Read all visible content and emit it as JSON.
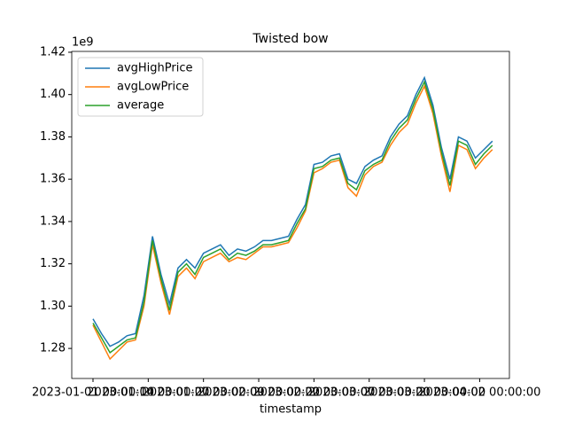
{
  "chart_data": {
    "type": "line",
    "title": "Twisted bow",
    "xlabel": "timestamp",
    "y_offset_label": "1e9",
    "x": [
      "2023-01-01",
      "2023-01-03",
      "2023-01-05",
      "2023-01-07",
      "2023-01-09",
      "2023-01-11",
      "2023-01-13",
      "2023-01-15",
      "2023-01-17",
      "2023-01-19",
      "2023-01-21",
      "2023-01-23",
      "2023-01-25",
      "2023-01-27",
      "2023-01-29",
      "2023-01-31",
      "2023-02-02",
      "2023-02-04",
      "2023-02-06",
      "2023-02-08",
      "2023-02-10",
      "2023-02-12",
      "2023-02-14",
      "2023-02-16",
      "2023-02-18",
      "2023-02-20",
      "2023-02-22",
      "2023-02-24",
      "2023-02-26",
      "2023-02-28",
      "2023-03-02",
      "2023-03-04",
      "2023-03-06",
      "2023-03-08",
      "2023-03-10",
      "2023-03-12",
      "2023-03-14",
      "2023-03-16",
      "2023-03-18",
      "2023-03-20",
      "2023-03-22",
      "2023-03-24",
      "2023-03-26",
      "2023-03-28",
      "2023-03-30",
      "2023-04-01",
      "2023-04-03",
      "2023-04-05"
    ],
    "series": [
      {
        "name": "avgHighPrice",
        "color": "#1f77b4",
        "values": [
          1.294,
          1.287,
          1.281,
          1.283,
          1.286,
          1.287,
          1.305,
          1.333,
          1.315,
          1.301,
          1.318,
          1.322,
          1.318,
          1.325,
          1.327,
          1.329,
          1.324,
          1.327,
          1.326,
          1.328,
          1.331,
          1.331,
          1.332,
          1.333,
          1.341,
          1.348,
          1.367,
          1.368,
          1.371,
          1.372,
          1.36,
          1.358,
          1.366,
          1.369,
          1.371,
          1.38,
          1.386,
          1.39,
          1.4,
          1.408,
          1.395,
          1.375,
          1.36,
          1.38,
          1.378,
          1.37,
          1.374,
          1.378
        ]
      },
      {
        "name": "avgLowPrice",
        "color": "#ff7f0e",
        "values": [
          1.291,
          1.283,
          1.275,
          1.279,
          1.283,
          1.284,
          1.3,
          1.329,
          1.311,
          1.296,
          1.314,
          1.318,
          1.313,
          1.321,
          1.323,
          1.325,
          1.321,
          1.323,
          1.322,
          1.325,
          1.328,
          1.328,
          1.329,
          1.33,
          1.337,
          1.345,
          1.363,
          1.365,
          1.368,
          1.369,
          1.356,
          1.352,
          1.362,
          1.366,
          1.368,
          1.376,
          1.382,
          1.386,
          1.396,
          1.404,
          1.391,
          1.371,
          1.354,
          1.376,
          1.374,
          1.365,
          1.37,
          1.374
        ]
      },
      {
        "name": "average",
        "color": "#2ca02c",
        "values": [
          1.292,
          1.285,
          1.278,
          1.281,
          1.284,
          1.285,
          1.302,
          1.331,
          1.313,
          1.298,
          1.316,
          1.32,
          1.315,
          1.323,
          1.325,
          1.327,
          1.322,
          1.325,
          1.324,
          1.326,
          1.329,
          1.329,
          1.33,
          1.331,
          1.339,
          1.346,
          1.365,
          1.366,
          1.369,
          1.37,
          1.358,
          1.355,
          1.364,
          1.367,
          1.369,
          1.378,
          1.384,
          1.388,
          1.398,
          1.406,
          1.393,
          1.373,
          1.357,
          1.378,
          1.376,
          1.367,
          1.372,
          1.376
        ]
      }
    ],
    "xlim": [
      "2022-12-27",
      "2023-04-09"
    ],
    "xticks": [
      {
        "value": "2023-01-01",
        "label": "2023-01-01 00:00:00"
      },
      {
        "value": "2023-01-14",
        "label": "2023-01-14 00:00:00"
      },
      {
        "value": "2023-01-27",
        "label": "2023-01-27 00:00:00"
      },
      {
        "value": "2023-02-09",
        "label": "2023-02-09 00:00:00"
      },
      {
        "value": "2023-02-22",
        "label": "2023-02-22 00:00:00"
      },
      {
        "value": "2023-03-07",
        "label": "2023-03-07 00:00:00"
      },
      {
        "value": "2023-03-20",
        "label": "2023-03-20 00:00:00"
      },
      {
        "value": "2023-04-02",
        "label": "2023-04-02 00:00:00"
      }
    ],
    "ylim": [
      1.2658,
      1.4204
    ],
    "yticks": [
      {
        "value": 1.28,
        "label": "1.28"
      },
      {
        "value": 1.3,
        "label": "1.30"
      },
      {
        "value": 1.32,
        "label": "1.32"
      },
      {
        "value": 1.34,
        "label": "1.34"
      },
      {
        "value": 1.36,
        "label": "1.36"
      },
      {
        "value": 1.38,
        "label": "1.38"
      },
      {
        "value": 1.4,
        "label": "1.40"
      },
      {
        "value": 1.42,
        "label": "1.42"
      }
    ],
    "legend": "upper left",
    "grid": false
  }
}
